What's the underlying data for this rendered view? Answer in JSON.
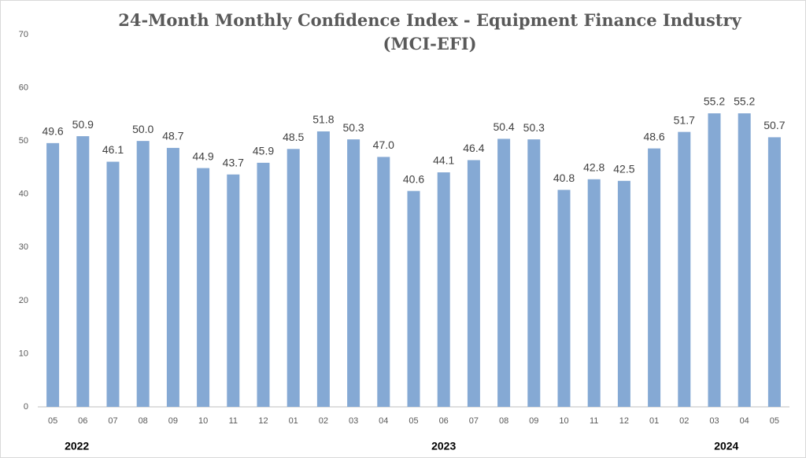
{
  "chart_data": {
    "type": "bar",
    "title": "24-Month Monthly Confidence Index - Equipment Finance Industry (MCI-EFI)",
    "categories": [
      "05",
      "06",
      "07",
      "08",
      "09",
      "10",
      "11",
      "12",
      "01",
      "02",
      "03",
      "04",
      "05",
      "06",
      "07",
      "08",
      "09",
      "10",
      "11",
      "12",
      "01",
      "02",
      "03",
      "04",
      "05"
    ],
    "values": [
      49.6,
      50.9,
      46.1,
      50,
      48.7,
      44.9,
      43.7,
      45.9,
      48.5,
      51.8,
      50.3,
      47,
      40.6,
      44.1,
      46.4,
      50.4,
      50.3,
      40.8,
      42.8,
      42.5,
      48.6,
      51.7,
      55.2,
      55.2,
      50.7
    ],
    "value_labels": [
      "49.6",
      "50.9",
      "46.1",
      "50.0",
      "48.7",
      "44.9",
      "43.7",
      "45.9",
      "48.5",
      "51.8",
      "50.3",
      "47.0",
      "40.6",
      "44.1",
      "46.4",
      "50.4",
      "50.3",
      "40.8",
      "42.8",
      "42.5",
      "48.6",
      "51.7",
      "55.2",
      "55.2",
      "50.7"
    ],
    "year_labels": [
      "2022",
      "2023",
      "2024"
    ],
    "color": "#85a9d4",
    "ylim": [
      0,
      70
    ],
    "yticks": [
      0,
      10,
      20,
      30,
      40,
      50,
      60,
      70
    ],
    "grid": false
  }
}
